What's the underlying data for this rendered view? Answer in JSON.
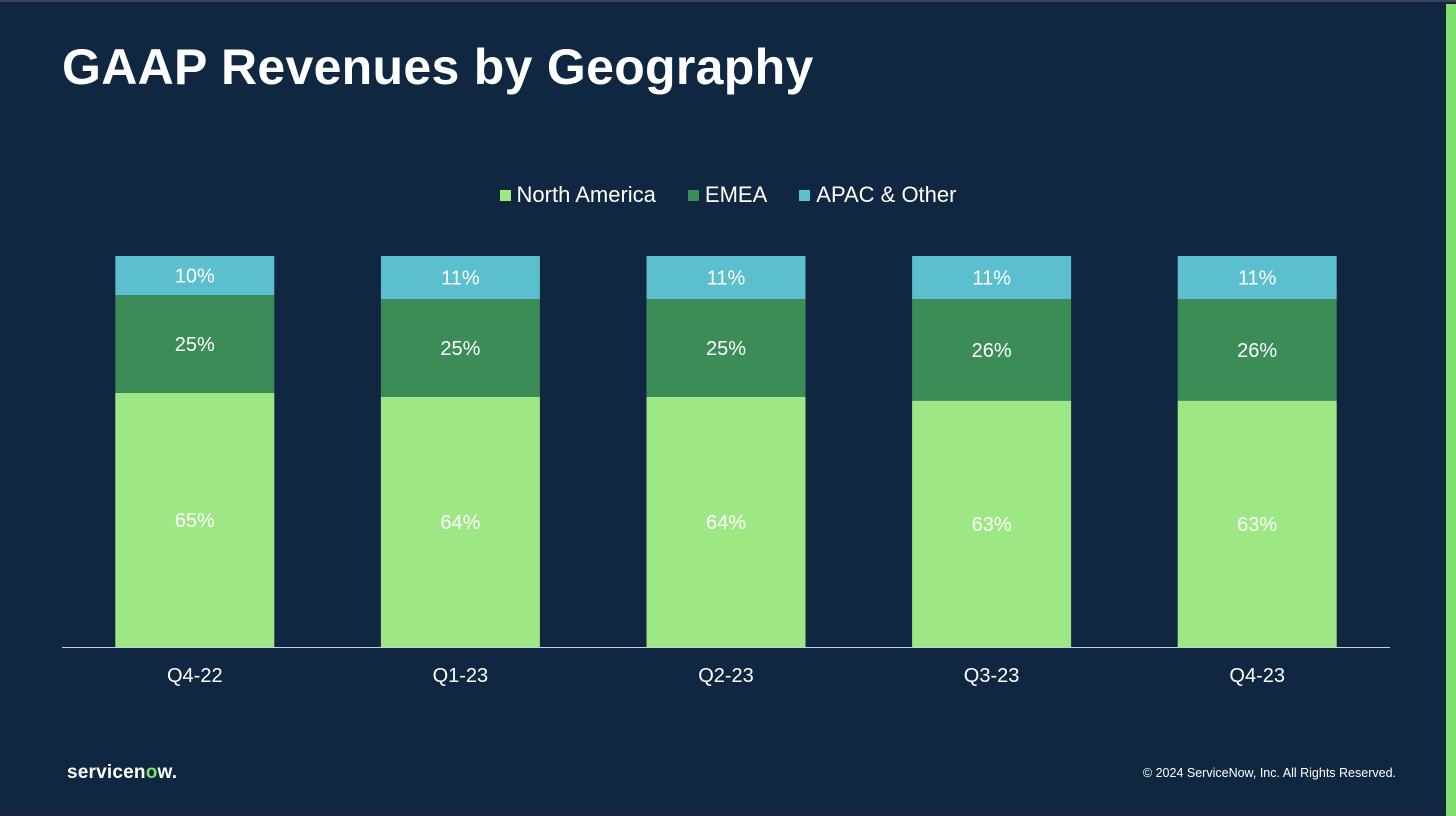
{
  "title": "GAAP Revenues by Geography",
  "colors": {
    "background": "#0f2740",
    "accent": "#7fdf6f",
    "north_america": "#9de884",
    "emea": "#3b8c57",
    "apac_other": "#5cbfcd"
  },
  "chart_data": {
    "type": "bar",
    "stacked": true,
    "categories": [
      "Q4-22",
      "Q1-23",
      "Q2-23",
      "Q3-23",
      "Q4-23"
    ],
    "series": [
      {
        "name": "North America",
        "values": [
          65,
          64,
          64,
          63,
          63
        ],
        "labels": [
          "65%",
          "64%",
          "64%",
          "63%",
          "63%"
        ],
        "color": "#9de884"
      },
      {
        "name": "EMEA",
        "values": [
          25,
          25,
          25,
          26,
          26
        ],
        "labels": [
          "25%",
          "25%",
          "25%",
          "26%",
          "26%"
        ],
        "color": "#3b8c57"
      },
      {
        "name": "APAC & Other",
        "values": [
          10,
          11,
          11,
          11,
          11
        ],
        "labels": [
          "10%",
          "11%",
          "11%",
          "11%",
          "11%"
        ],
        "color": "#5cbfcd"
      }
    ],
    "ylim": [
      0,
      100
    ],
    "legend_position": "top-center",
    "grid": false
  },
  "footer": {
    "logo_text": "servicenow.",
    "copyright": "© 2024 ServiceNow, Inc. All Rights Reserved."
  }
}
